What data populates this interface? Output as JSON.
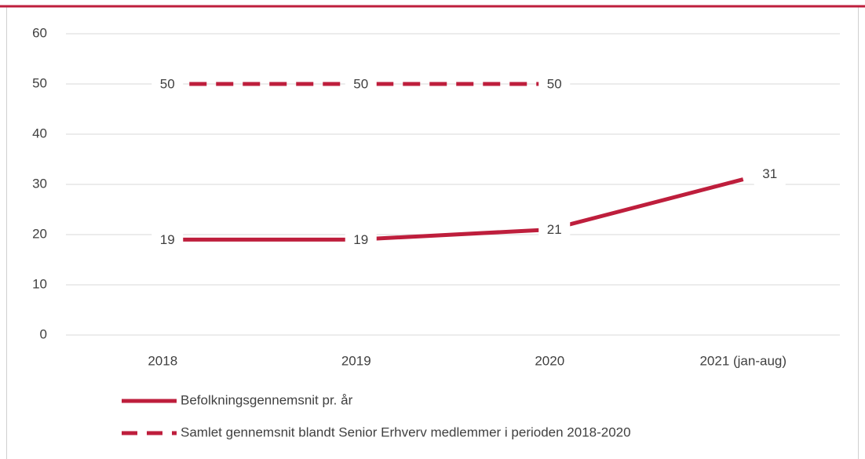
{
  "chart_data": {
    "type": "line",
    "categories": [
      "2018",
      "2019",
      "2020",
      "2021 (jan-aug)"
    ],
    "series": [
      {
        "name": "Befolkningsgennemsnit pr. år",
        "color": "#be1e3c",
        "line_style": "solid",
        "values": [
          19,
          19,
          21,
          31
        ]
      },
      {
        "name": "Samlet gennemsnit blandt Senior Erhverv medlemmer i perioden 2018-2020",
        "color": "#be1e3c",
        "line_style": "dashed",
        "values": [
          50,
          50,
          50,
          null
        ]
      }
    ],
    "ylim": [
      0,
      60
    ],
    "yticks": [
      0,
      10,
      20,
      30,
      40,
      50,
      60
    ],
    "grid": true,
    "data_labels": true,
    "legend": "bottom-left"
  }
}
